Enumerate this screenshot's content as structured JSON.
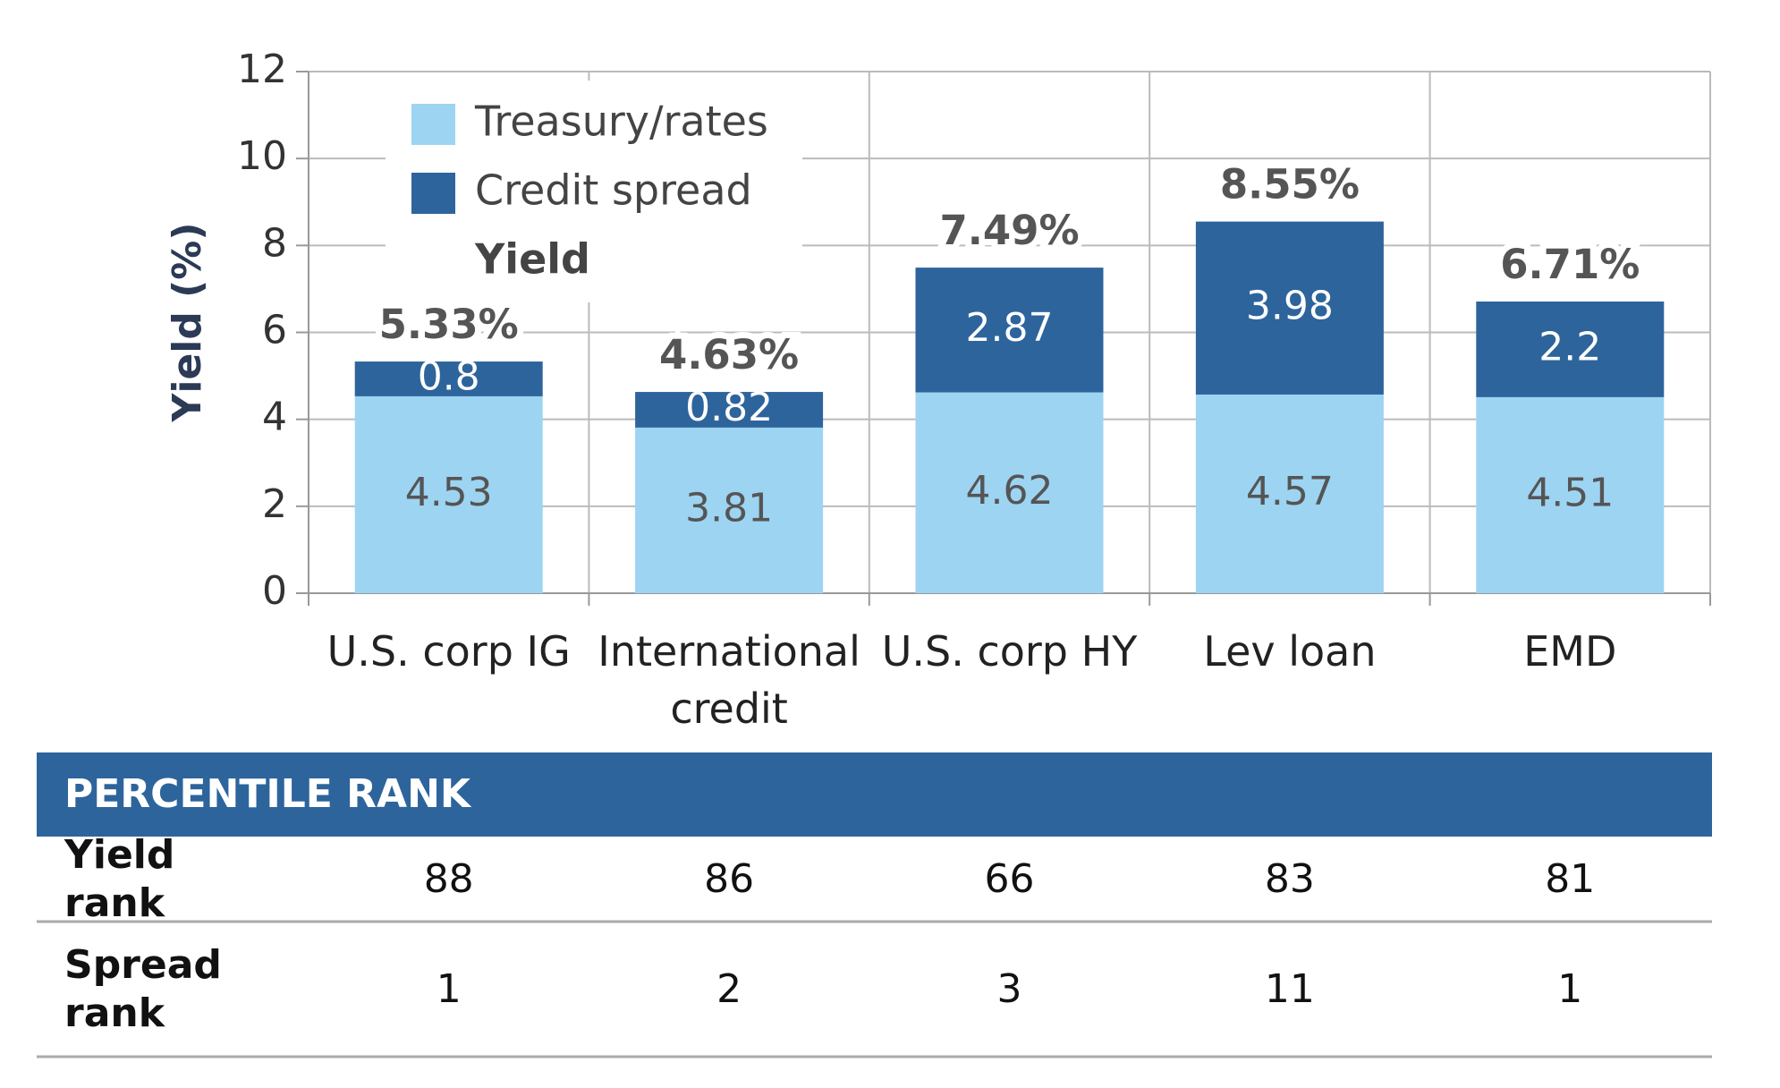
{
  "chart_data": {
    "type": "stacked_bar",
    "ylabel": "Yield (%)",
    "categories": [
      "U.S. corp IG",
      "International credit",
      "U.S. corp HY",
      "Lev loan",
      "EMD"
    ],
    "series": [
      {
        "name": "Treasury/rates",
        "color": "#9dd4f2",
        "values": [
          4.53,
          3.81,
          4.62,
          4.57,
          4.51
        ]
      },
      {
        "name": "Credit spread",
        "color": "#2e649c",
        "values": [
          0.8,
          0.82,
          2.87,
          3.98,
          2.2
        ]
      }
    ],
    "totals": {
      "name": "Yield",
      "values": [
        5.33,
        4.63,
        7.49,
        8.55,
        6.71
      ],
      "value_labels": [
        "5.33%",
        "4.63%",
        "7.49%",
        "8.55%",
        "6.71%"
      ]
    },
    "ylim": [
      0,
      12
    ],
    "yticks": [
      0,
      2,
      4,
      6,
      8,
      10,
      12
    ],
    "grid": true
  },
  "table": {
    "title": "PERCENTILE RANK",
    "rows": [
      {
        "label": "Yield rank",
        "values": [
          88,
          86,
          66,
          83,
          81
        ]
      },
      {
        "label": "Spread rank",
        "values": [
          1,
          2,
          3,
          11,
          1
        ]
      }
    ]
  }
}
